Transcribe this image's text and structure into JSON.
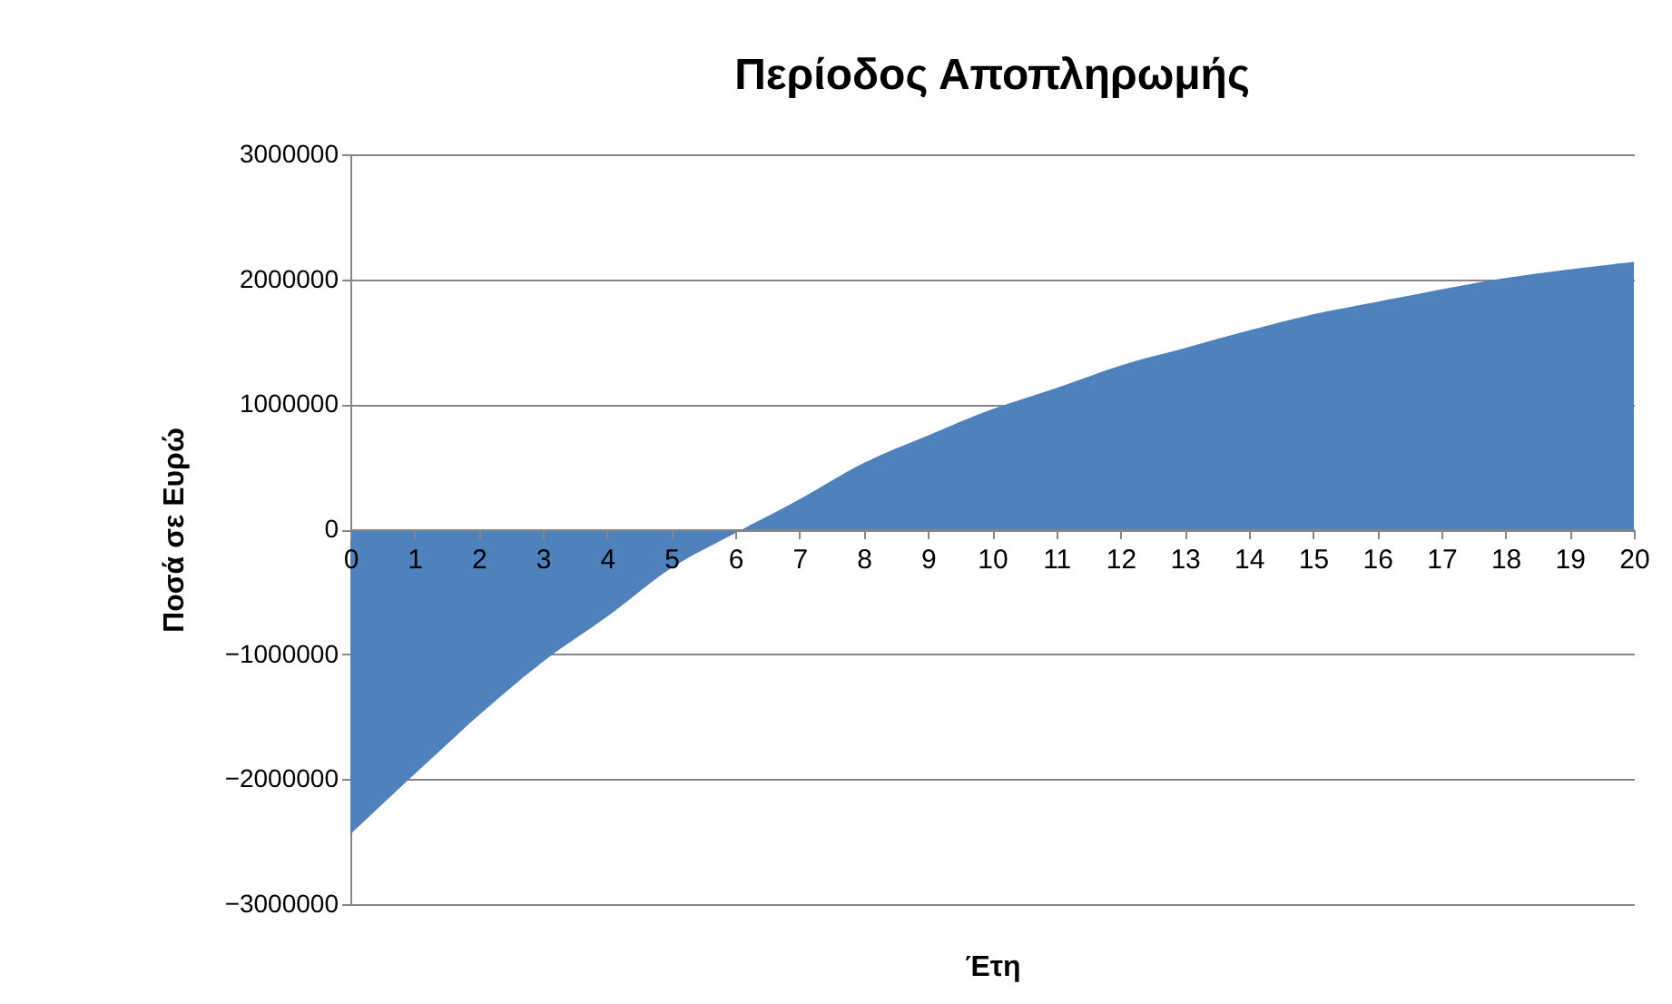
{
  "chart_data": {
    "type": "area",
    "title": "Περίοδος Αποπληρωμής",
    "xlabel": "Έτη",
    "ylabel": "Ποσά σε Ευρώ",
    "x": [
      0,
      1,
      2,
      3,
      4,
      5,
      6,
      7,
      8,
      9,
      10,
      11,
      12,
      13,
      14,
      15,
      16,
      17,
      18,
      19,
      20
    ],
    "series": [
      {
        "color": "#4f81bd",
        "values": [
          -2440000,
          -1960000,
          -1490000,
          -1060000,
          -700000,
          -310000,
          -30000,
          240000,
          530000,
          750000,
          960000,
          1130000,
          1310000,
          1450000,
          1590000,
          1720000,
          1820000,
          1920000,
          2010000,
          2080000,
          2140000
        ]
      }
    ],
    "xlim": [
      0,
      20
    ],
    "xticks": [
      0,
      1,
      2,
      3,
      4,
      5,
      6,
      7,
      8,
      9,
      10,
      11,
      12,
      13,
      14,
      15,
      16,
      17,
      18,
      19,
      20
    ],
    "ylim": [
      -3000000,
      3000000
    ],
    "yticks": [
      -3000000,
      -2000000,
      -1000000,
      0,
      1000000,
      2000000,
      3000000
    ],
    "grid": "y"
  }
}
